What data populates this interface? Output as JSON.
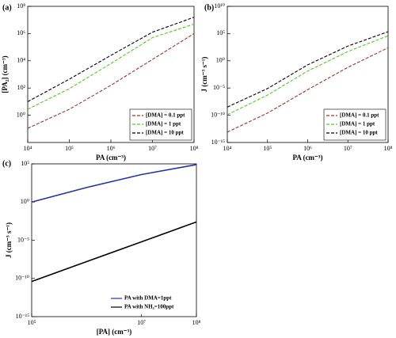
{
  "chart_data": [
    {
      "type": "line",
      "panel_label": "(a)",
      "x_label": "PA (cm⁻³)",
      "y_label": "[PA₂] (cm⁻³)",
      "log_x": true,
      "log_y": true,
      "linestyle": "dashed",
      "legend": "lower right",
      "xlim": [
        10000,
        100000000
      ],
      "ylim": [
        0.01,
        100000000
      ],
      "xticks": [
        {
          "value": 10000,
          "label": "10⁴"
        },
        {
          "value": 100000,
          "label": "10⁵"
        },
        {
          "value": 1000000,
          "label": "10⁶"
        },
        {
          "value": 10000000,
          "label": "10⁷"
        },
        {
          "value": 100000000,
          "label": "10⁸"
        }
      ],
      "yticks": [
        {
          "value": 1,
          "label": "10⁰"
        },
        {
          "value": 100,
          "label": "10²"
        },
        {
          "value": 10000,
          "label": "10⁴"
        },
        {
          "value": 1000000,
          "label": "10⁶"
        },
        {
          "value": 100000000,
          "label": "10⁸"
        }
      ],
      "x": [
        10000,
        100000,
        1000000,
        10000000,
        100000000
      ],
      "series": [
        {
          "name": "[DMA] = 0.1 ppt",
          "color": "#a0302a",
          "values": [
            0.11,
            2.75,
            158,
            12600,
            1000000
          ]
        },
        {
          "name": "[DMA] = 1 ppt",
          "color": "#55cc22",
          "values": [
            2.75,
            89,
            6300,
            500000,
            5000000
          ]
        },
        {
          "name": "[DMA] = 10 ppt",
          "color": "#000000",
          "values": [
            10,
            447,
            25000,
            1260000,
            15800000
          ]
        }
      ]
    },
    {
      "type": "line",
      "panel_label": "(b)",
      "x_label": "PA (cm⁻³)",
      "y_label": "J (cm⁻³ s⁻¹)",
      "log_x": true,
      "log_y": true,
      "linestyle": "dashed",
      "legend": "lower right",
      "xlim": [
        10000,
        100000000
      ],
      "ylim": [
        1e-15,
        10000000000.0
      ],
      "xticks": [
        {
          "value": 10000,
          "label": "10⁴"
        },
        {
          "value": 100000,
          "label": "10⁵"
        },
        {
          "value": 1000000,
          "label": "10⁶"
        },
        {
          "value": 10000000,
          "label": "10⁷"
        },
        {
          "value": 100000000,
          "label": "10⁸"
        }
      ],
      "yticks": [
        {
          "value": 1e-15,
          "label": "10⁻¹⁵"
        },
        {
          "value": 1e-10,
          "label": "10⁻¹⁰"
        },
        {
          "value": 1e-05,
          "label": "10⁻⁵"
        },
        {
          "value": 1,
          "label": "10⁰"
        },
        {
          "value": 100000,
          "label": "10⁵"
        },
        {
          "value": 10000000000.0,
          "label": "10¹⁰"
        }
      ],
      "x": [
        10000,
        100000,
        1000000,
        10000000,
        100000000
      ],
      "series": [
        {
          "name": "[DMA] = 0.1 ppt",
          "color": "#a0302a",
          "values": [
            8e-14,
            2.5e-10,
            5e-06,
            0.063,
            250
          ]
        },
        {
          "name": "[DMA] = 1 ppt",
          "color": "#55cc22",
          "values": [
            1.3e-10,
            5e-07,
            0.013,
            50,
            40000
          ]
        },
        {
          "name": "[DMA] = 10 ppt",
          "color": "#000000",
          "values": [
            3.2e-09,
            7.9e-06,
            0.18,
            500,
            220000
          ]
        }
      ]
    },
    {
      "type": "line",
      "panel_label": "(c)",
      "x_label": "[PA] (cm⁻³)",
      "y_label": "J (cm⁻³ s⁻¹)",
      "log_x": true,
      "log_y": true,
      "linestyle": "solid",
      "legend": "lower right",
      "xlim": [
        100000,
        100000000
      ],
      "ylim": [
        1e-15,
        100000
      ],
      "xticks": [
        {
          "value": 100000,
          "label": "10⁵"
        },
        {
          "value": 10000000,
          "label": "10⁷"
        },
        {
          "value": 100000000,
          "label": "10⁸"
        }
      ],
      "yticks": [
        {
          "value": 1e-15,
          "label": "10⁻¹⁵"
        },
        {
          "value": 1e-10,
          "label": "10⁻¹⁰"
        },
        {
          "value": 1e-05,
          "label": "10⁻⁵"
        },
        {
          "value": 1,
          "label": "10⁰"
        },
        {
          "value": 100000,
          "label": "10⁵"
        }
      ],
      "x": [
        100000,
        1000000,
        10000000,
        100000000
      ],
      "series": [
        {
          "name": "PA with DMA=1ppt",
          "color": "#2233aa",
          "values": [
            1,
            80,
            4000,
            80000
          ]
        },
        {
          "name": "PA with NH₃=100ppt",
          "color": "#000000",
          "values": [
            4e-11,
            1.6e-08,
            6.3e-06,
            0.0025
          ]
        }
      ]
    }
  ]
}
